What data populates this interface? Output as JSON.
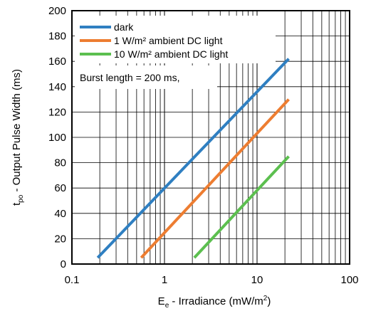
{
  "chart_data": {
    "type": "line",
    "xlabel": {
      "main": "E",
      "sub": "e",
      "rest": " - Irradiance (mW/m",
      "sup": "2",
      "close": ")"
    },
    "ylabel": {
      "main": "t",
      "sub": "po",
      "rest": " - Output Pulse Width (ms)"
    },
    "x_scale": "log",
    "xlim": [
      0.1,
      100
    ],
    "ylim": [
      0,
      200
    ],
    "x_ticks": [
      0.1,
      1,
      10,
      100
    ],
    "x_tick_labels": [
      "0.1",
      "1",
      "10",
      "100"
    ],
    "y_ticks": [
      0,
      20,
      40,
      60,
      80,
      100,
      120,
      140,
      160,
      180,
      200
    ],
    "y_tick_labels": [
      "0",
      "20",
      "40",
      "60",
      "80",
      "100",
      "120",
      "140",
      "160",
      "180",
      "200"
    ],
    "grid": true,
    "legend_position": "top-left",
    "annotation": "Burst length = 200 ms,",
    "series": [
      {
        "name": "dark",
        "color": "#2f7fc1",
        "points": [
          [
            0.19,
            5
          ],
          [
            22,
            162
          ]
        ]
      },
      {
        "name": "1 W/m² ambient DC light",
        "color": "#ed7d31",
        "points": [
          [
            0.56,
            5
          ],
          [
            22,
            130
          ]
        ]
      },
      {
        "name": "10 W/m² ambient DC light",
        "color": "#5cbf4f",
        "points": [
          [
            2.1,
            5
          ],
          [
            22,
            85
          ]
        ]
      }
    ]
  }
}
